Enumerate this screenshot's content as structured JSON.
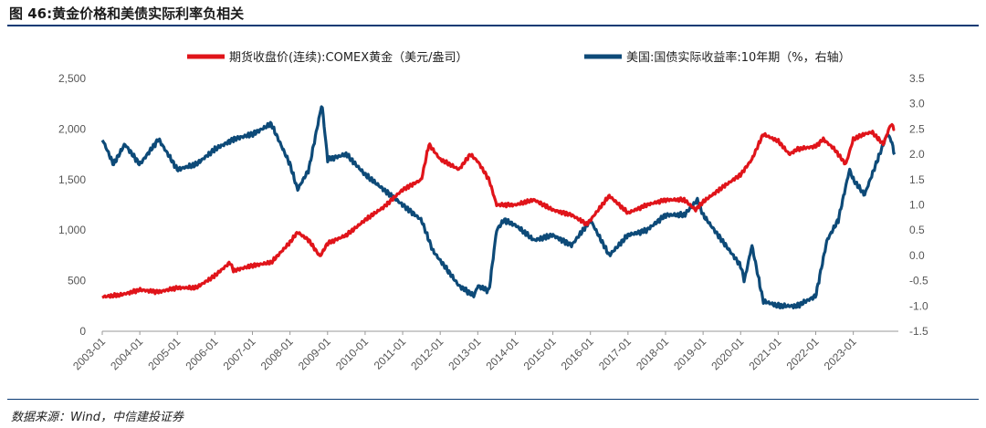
{
  "title": "图 46:黄金价格和美债实际利率负相关",
  "source": "数据来源：Wind，中信建投证券",
  "colors": {
    "gold": "#e0141a",
    "yield": "#0d4a78",
    "rule": "#0b3a74"
  },
  "chart_data": {
    "type": "line",
    "title": "图 46:黄金价格和美债实际利率负相关",
    "x_ticks": [
      "2003-01",
      "2004-01",
      "2005-01",
      "2006-01",
      "2007-01",
      "2008-01",
      "2009-01",
      "2010-01",
      "2011-01",
      "2012-01",
      "2013-01",
      "2014-01",
      "2015-01",
      "2016-01",
      "2017-01",
      "2018-01",
      "2019-01",
      "2020-01",
      "2021-01",
      "2022-01",
      "2023-01"
    ],
    "x_range": [
      2003.0,
      2024.2
    ],
    "left_axis": {
      "range": [
        0,
        2500
      ],
      "ticks": [
        "0",
        "500",
        "1,000",
        "1,500",
        "2,000",
        "2,500"
      ],
      "tick_values": [
        0,
        500,
        1000,
        1500,
        2000,
        2500
      ]
    },
    "right_axis": {
      "range": [
        -1.5,
        3.5
      ],
      "ticks": [
        "-1.5",
        "-1.0",
        "-0.5",
        "0.0",
        "0.5",
        "1.0",
        "1.5",
        "2.0",
        "2.5",
        "3.0",
        "3.5"
      ],
      "tick_values": [
        -1.5,
        -1.0,
        -0.5,
        0.0,
        0.5,
        1.0,
        1.5,
        2.0,
        2.5,
        3.0,
        3.5
      ]
    },
    "grid": false,
    "legend_position": "top",
    "series": [
      {
        "name": "期货收盘价(连续):COMEX黄金（美元/盎司）",
        "axis": "left",
        "x": [
          2003.0,
          2003.5,
          2004.0,
          2004.5,
          2005.0,
          2005.5,
          2006.0,
          2006.4,
          2006.5,
          2007.0,
          2007.5,
          2008.0,
          2008.2,
          2008.5,
          2008.8,
          2009.0,
          2009.5,
          2010.0,
          2010.5,
          2011.0,
          2011.5,
          2011.7,
          2012.0,
          2012.5,
          2012.8,
          2013.0,
          2013.3,
          2013.5,
          2014.0,
          2014.5,
          2015.0,
          2015.5,
          2015.9,
          2016.0,
          2016.5,
          2017.0,
          2017.5,
          2018.0,
          2018.5,
          2018.8,
          2019.0,
          2019.5,
          2020.0,
          2020.3,
          2020.6,
          2021.0,
          2021.3,
          2021.5,
          2022.0,
          2022.2,
          2022.5,
          2022.8,
          2023.0,
          2023.3,
          2023.5,
          2023.8,
          2024.0,
          2024.1
        ],
        "values": [
          340,
          360,
          410,
          390,
          430,
          430,
          550,
          680,
          600,
          650,
          680,
          880,
          980,
          900,
          740,
          870,
          950,
          1100,
          1230,
          1400,
          1500,
          1850,
          1700,
          1600,
          1750,
          1680,
          1500,
          1250,
          1250,
          1300,
          1200,
          1150,
          1060,
          1100,
          1340,
          1170,
          1250,
          1300,
          1300,
          1200,
          1280,
          1420,
          1550,
          1700,
          1950,
          1880,
          1750,
          1800,
          1830,
          1900,
          1800,
          1650,
          1900,
          1950,
          1970,
          1850,
          2050,
          2000
        ]
      },
      {
        "name": "美国:国债实际收益率:10年期（%，右轴）",
        "axis": "right",
        "x": [
          2003.0,
          2003.3,
          2003.6,
          2004.0,
          2004.5,
          2005.0,
          2005.5,
          2006.0,
          2006.5,
          2007.0,
          2007.5,
          2008.0,
          2008.2,
          2008.5,
          2008.85,
          2009.0,
          2009.5,
          2010.0,
          2010.5,
          2011.0,
          2011.5,
          2011.8,
          2012.0,
          2012.5,
          2012.9,
          2013.0,
          2013.3,
          2013.5,
          2013.7,
          2014.0,
          2014.5,
          2015.0,
          2015.5,
          2016.0,
          2016.5,
          2017.0,
          2017.5,
          2018.0,
          2018.5,
          2018.85,
          2019.0,
          2019.5,
          2020.0,
          2020.1,
          2020.3,
          2020.6,
          2021.0,
          2021.5,
          2022.0,
          2022.3,
          2022.6,
          2022.9,
          2023.0,
          2023.3,
          2023.6,
          2023.9,
          2024.0,
          2024.1
        ],
        "values": [
          2.3,
          1.8,
          2.2,
          1.8,
          2.3,
          1.7,
          1.8,
          2.1,
          2.3,
          2.4,
          2.6,
          1.8,
          1.3,
          1.7,
          3.0,
          1.9,
          2.0,
          1.6,
          1.3,
          1.0,
          0.7,
          0.1,
          -0.1,
          -0.6,
          -0.8,
          -0.6,
          -0.7,
          0.5,
          0.7,
          0.6,
          0.3,
          0.4,
          0.2,
          0.7,
          0.0,
          0.4,
          0.5,
          0.8,
          0.8,
          1.1,
          0.8,
          0.3,
          -0.2,
          -0.5,
          0.2,
          -0.9,
          -1.0,
          -1.0,
          -0.8,
          0.3,
          0.7,
          1.7,
          1.5,
          1.2,
          1.8,
          2.4,
          2.3,
          2.0
        ]
      }
    ]
  }
}
